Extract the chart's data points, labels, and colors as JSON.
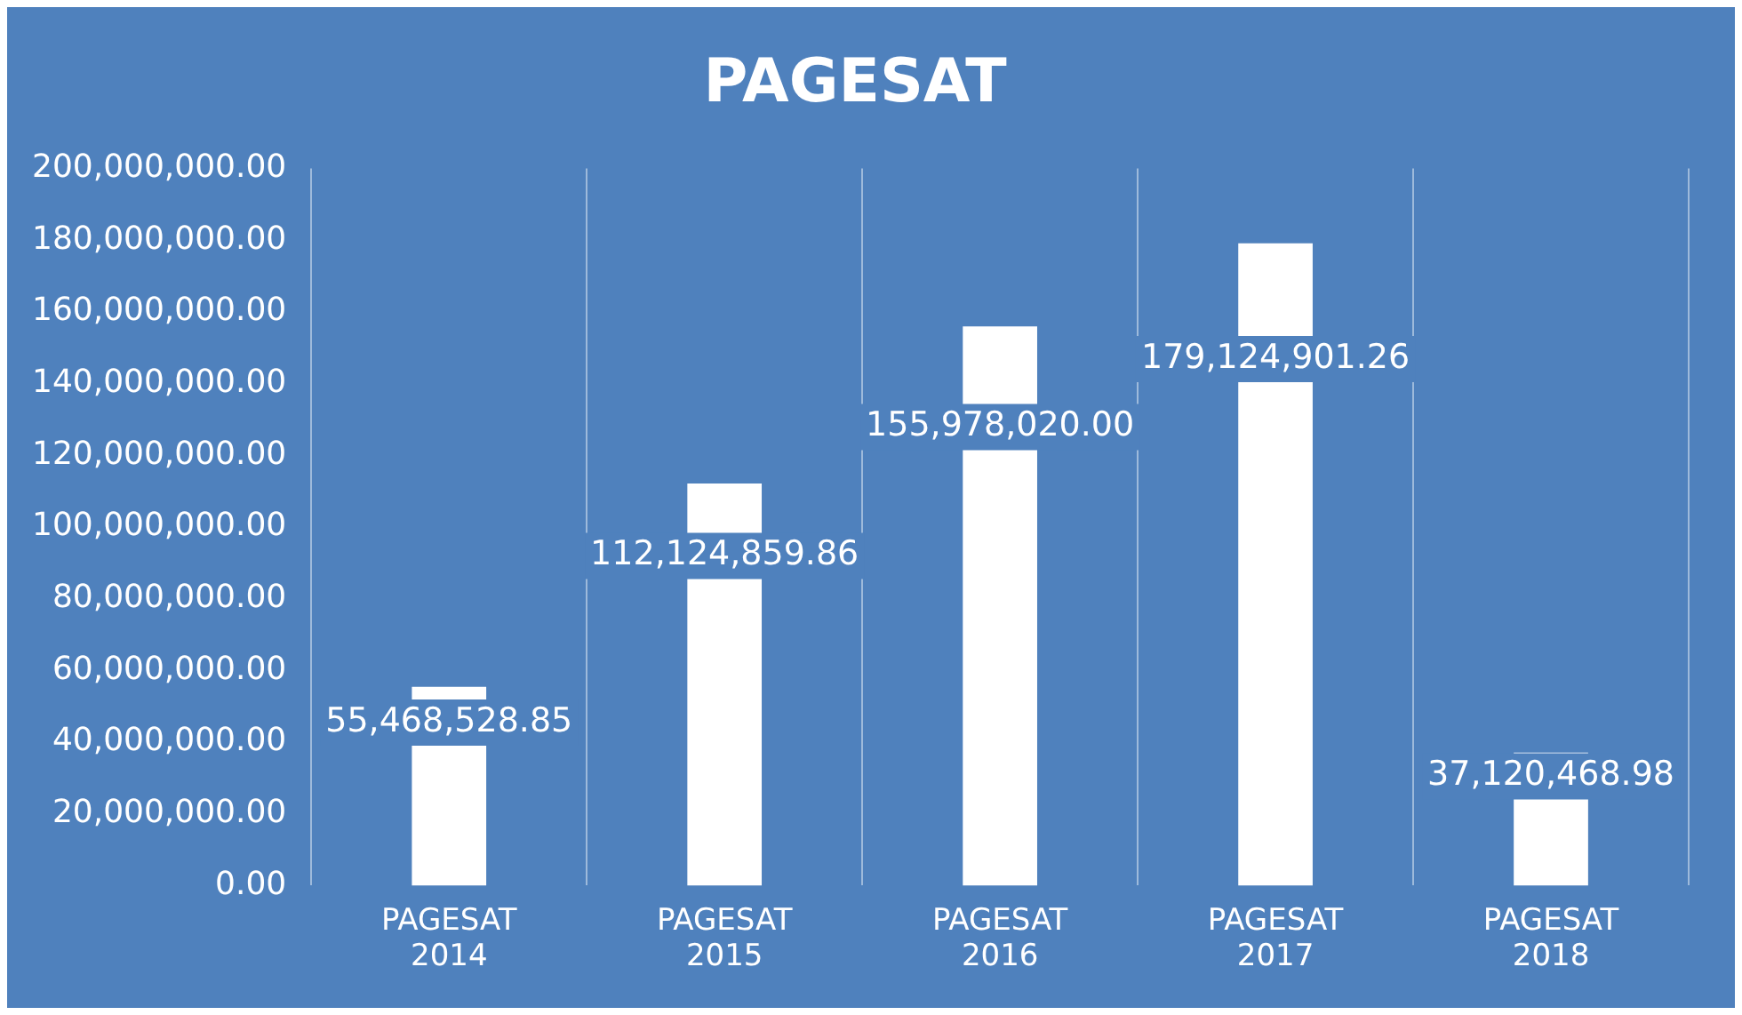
{
  "chart_data": {
    "type": "bar",
    "title": "PAGESAT",
    "categories": [
      "PAGESAT 2014",
      "PAGESAT 2015",
      "PAGESAT 2016",
      "PAGESAT 2017",
      "PAGESAT 2018"
    ],
    "values": [
      55468528.85,
      112124859.86,
      155978020.0,
      179124901.26,
      37120468.98
    ],
    "value_labels": [
      "55,468,528.85",
      "112,124,859.86",
      "155,978,020.00",
      "179,124,901.26",
      "37,120,468.98"
    ],
    "color": "#ffffff",
    "ylim": [
      0,
      200000000
    ],
    "yticks": [
      {
        "value": 0,
        "label": "0.00"
      },
      {
        "value": 20000000,
        "label": "20,000,000.00"
      },
      {
        "value": 40000000,
        "label": "40,000,000.00"
      },
      {
        "value": 60000000,
        "label": "60,000,000.00"
      },
      {
        "value": 80000000,
        "label": "80,000,000.00"
      },
      {
        "value": 100000000,
        "label": "100,000,000.00"
      },
      {
        "value": 120000000,
        "label": "120,000,000.00"
      },
      {
        "value": 140000000,
        "label": "140,000,000.00"
      },
      {
        "value": 160000000,
        "label": "160,000,000.00"
      },
      {
        "value": 180000000,
        "label": "180,000,000.00"
      },
      {
        "value": 200000000,
        "label": "200,000,000.00"
      }
    ],
    "grid": "x",
    "legend": false
  }
}
